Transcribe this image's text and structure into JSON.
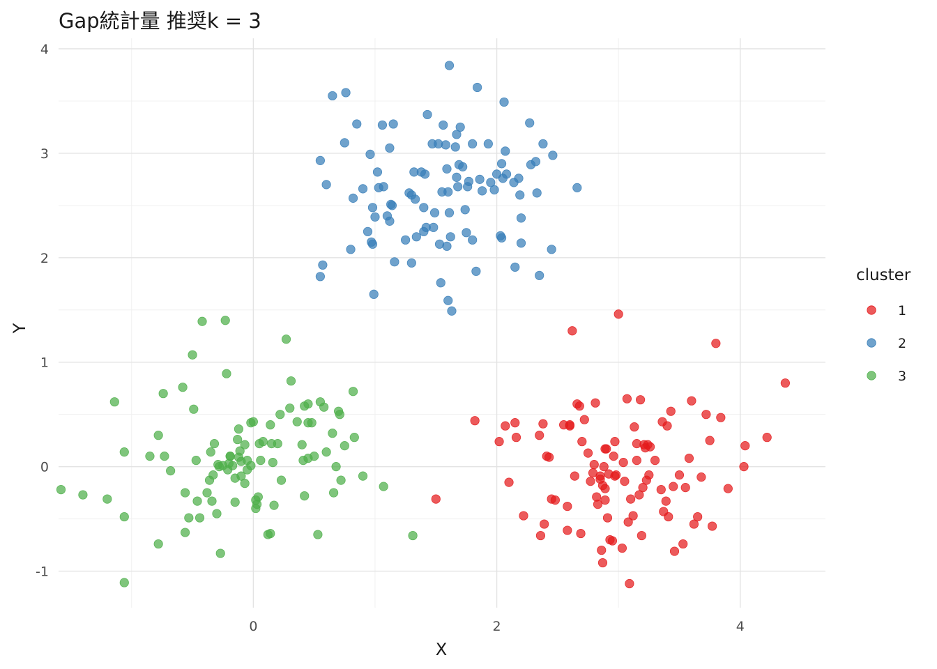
{
  "chart_data": {
    "type": "scatter",
    "title": "Gap統計量  推奨k = 3",
    "xlabel": "X",
    "ylabel": "Y",
    "xlim": [
      -1.6,
      4.7
    ],
    "ylim": [
      -1.35,
      4.1
    ],
    "x_ticks": [
      0,
      2,
      4
    ],
    "y_ticks": [
      -1,
      0,
      1,
      2,
      3,
      4
    ],
    "x_tick_labels": [
      "0",
      "2",
      "4"
    ],
    "y_tick_labels": [
      "-1",
      "0",
      "1",
      "2",
      "3",
      "4"
    ],
    "grid": true,
    "legend": {
      "title": "cluster",
      "position": "right"
    },
    "series": [
      {
        "name": "1",
        "color": "#E41A1C",
        "points": [
          [
            1.5,
            -0.31
          ],
          [
            1.82,
            0.44
          ],
          [
            2.02,
            0.24
          ],
          [
            2.07,
            0.39
          ],
          [
            2.1,
            -0.15
          ],
          [
            2.15,
            0.42
          ],
          [
            2.16,
            0.28
          ],
          [
            2.22,
            -0.47
          ],
          [
            2.35,
            0.3
          ],
          [
            2.36,
            -0.66
          ],
          [
            2.38,
            0.41
          ],
          [
            2.39,
            -0.55
          ],
          [
            2.41,
            0.1
          ],
          [
            2.43,
            0.09
          ],
          [
            2.45,
            -0.31
          ],
          [
            2.48,
            -0.32
          ],
          [
            2.55,
            0.4
          ],
          [
            2.58,
            -0.38
          ],
          [
            2.6,
            0.39
          ],
          [
            2.62,
            1.3
          ],
          [
            2.6,
            0.4
          ],
          [
            2.58,
            -0.61
          ],
          [
            2.64,
            -0.09
          ],
          [
            2.66,
            0.6
          ],
          [
            2.68,
            0.58
          ],
          [
            2.69,
            -0.64
          ],
          [
            2.7,
            0.24
          ],
          [
            2.72,
            0.45
          ],
          [
            2.75,
            0.13
          ],
          [
            2.77,
            -0.14
          ],
          [
            2.79,
            -0.06
          ],
          [
            2.8,
            0.02
          ],
          [
            2.81,
            0.61
          ],
          [
            2.82,
            -0.29
          ],
          [
            2.83,
            -0.36
          ],
          [
            2.85,
            -0.09
          ],
          [
            2.85,
            -0.12
          ],
          [
            2.86,
            -0.8
          ],
          [
            2.87,
            -0.92
          ],
          [
            2.87,
            -0.18
          ],
          [
            2.88,
            0.0
          ],
          [
            2.89,
            -0.21
          ],
          [
            2.89,
            -0.32
          ],
          [
            2.89,
            0.17
          ],
          [
            2.9,
            0.17
          ],
          [
            2.91,
            -0.49
          ],
          [
            2.92,
            -0.07
          ],
          [
            2.93,
            -0.7
          ],
          [
            2.95,
            -0.71
          ],
          [
            2.96,
            0.1
          ],
          [
            2.97,
            0.24
          ],
          [
            2.97,
            -0.09
          ],
          [
            2.98,
            -0.08
          ],
          [
            3.0,
            1.46
          ],
          [
            3.03,
            -0.78
          ],
          [
            3.04,
            0.04
          ],
          [
            3.05,
            -0.14
          ],
          [
            3.07,
            0.65
          ],
          [
            3.08,
            -0.53
          ],
          [
            3.09,
            -1.12
          ],
          [
            3.1,
            -0.31
          ],
          [
            3.12,
            -0.47
          ],
          [
            3.13,
            0.38
          ],
          [
            3.15,
            0.22
          ],
          [
            3.15,
            0.06
          ],
          [
            3.17,
            -0.27
          ],
          [
            3.18,
            0.64
          ],
          [
            3.19,
            -0.66
          ],
          [
            3.2,
            -0.2
          ],
          [
            3.21,
            0.21
          ],
          [
            3.22,
            0.18
          ],
          [
            3.23,
            -0.13
          ],
          [
            3.24,
            0.21
          ],
          [
            3.25,
            -0.08
          ],
          [
            3.26,
            0.19
          ],
          [
            3.3,
            0.06
          ],
          [
            3.35,
            -0.22
          ],
          [
            3.36,
            0.43
          ],
          [
            3.37,
            -0.43
          ],
          [
            3.39,
            -0.33
          ],
          [
            3.4,
            0.39
          ],
          [
            3.41,
            -0.48
          ],
          [
            3.43,
            0.53
          ],
          [
            3.45,
            -0.19
          ],
          [
            3.46,
            -0.81
          ],
          [
            3.5,
            -0.08
          ],
          [
            3.53,
            -0.74
          ],
          [
            3.55,
            -0.2
          ],
          [
            3.58,
            0.08
          ],
          [
            3.6,
            0.63
          ],
          [
            3.62,
            -0.55
          ],
          [
            3.65,
            -0.48
          ],
          [
            3.68,
            -0.1
          ],
          [
            3.72,
            0.5
          ],
          [
            3.75,
            0.25
          ],
          [
            3.77,
            -0.57
          ],
          [
            3.8,
            1.18
          ],
          [
            3.84,
            0.47
          ],
          [
            3.9,
            -0.21
          ],
          [
            4.03,
            0.0
          ],
          [
            4.04,
            0.2
          ],
          [
            4.22,
            0.28
          ],
          [
            4.37,
            0.8
          ]
        ]
      },
      {
        "name": "2",
        "color": "#377EB8",
        "points": [
          [
            0.55,
            2.93
          ],
          [
            0.55,
            1.82
          ],
          [
            0.57,
            1.93
          ],
          [
            0.6,
            2.7
          ],
          [
            0.65,
            3.55
          ],
          [
            0.75,
            3.1
          ],
          [
            0.76,
            3.58
          ],
          [
            0.8,
            2.08
          ],
          [
            0.82,
            2.57
          ],
          [
            0.85,
            3.28
          ],
          [
            0.9,
            2.66
          ],
          [
            0.94,
            2.25
          ],
          [
            0.96,
            2.99
          ],
          [
            0.97,
            2.15
          ],
          [
            0.98,
            2.13
          ],
          [
            0.98,
            2.48
          ],
          [
            0.99,
            1.65
          ],
          [
            1.0,
            2.39
          ],
          [
            1.02,
            2.82
          ],
          [
            1.03,
            2.67
          ],
          [
            1.06,
            3.27
          ],
          [
            1.07,
            2.68
          ],
          [
            1.1,
            2.4
          ],
          [
            1.12,
            2.35
          ],
          [
            1.12,
            3.05
          ],
          [
            1.13,
            2.51
          ],
          [
            1.14,
            2.5
          ],
          [
            1.15,
            3.28
          ],
          [
            1.16,
            1.96
          ],
          [
            1.25,
            2.17
          ],
          [
            1.28,
            2.62
          ],
          [
            1.3,
            2.6
          ],
          [
            1.3,
            1.95
          ],
          [
            1.32,
            2.82
          ],
          [
            1.33,
            2.56
          ],
          [
            1.34,
            2.2
          ],
          [
            1.38,
            2.82
          ],
          [
            1.4,
            2.48
          ],
          [
            1.4,
            2.25
          ],
          [
            1.41,
            2.8
          ],
          [
            1.42,
            2.29
          ],
          [
            1.43,
            3.37
          ],
          [
            1.47,
            3.09
          ],
          [
            1.48,
            2.29
          ],
          [
            1.49,
            2.43
          ],
          [
            1.52,
            3.09
          ],
          [
            1.53,
            2.13
          ],
          [
            1.54,
            1.76
          ],
          [
            1.55,
            2.63
          ],
          [
            1.56,
            3.27
          ],
          [
            1.58,
            3.08
          ],
          [
            1.59,
            2.11
          ],
          [
            1.59,
            2.85
          ],
          [
            1.6,
            2.63
          ],
          [
            1.6,
            1.59
          ],
          [
            1.61,
            3.84
          ],
          [
            1.61,
            2.43
          ],
          [
            1.62,
            2.2
          ],
          [
            1.63,
            1.49
          ],
          [
            1.66,
            3.06
          ],
          [
            1.67,
            2.77
          ],
          [
            1.67,
            3.18
          ],
          [
            1.68,
            2.68
          ],
          [
            1.69,
            2.89
          ],
          [
            1.7,
            3.25
          ],
          [
            1.72,
            2.87
          ],
          [
            1.74,
            2.46
          ],
          [
            1.75,
            2.24
          ],
          [
            1.76,
            2.68
          ],
          [
            1.77,
            2.73
          ],
          [
            1.8,
            2.17
          ],
          [
            1.8,
            3.09
          ],
          [
            1.83,
            1.87
          ],
          [
            1.84,
            3.63
          ],
          [
            1.86,
            2.75
          ],
          [
            1.88,
            2.64
          ],
          [
            1.93,
            3.09
          ],
          [
            1.95,
            2.72
          ],
          [
            1.98,
            2.65
          ],
          [
            2.0,
            2.8
          ],
          [
            2.03,
            2.21
          ],
          [
            2.04,
            2.19
          ],
          [
            2.04,
            2.9
          ],
          [
            2.05,
            2.76
          ],
          [
            2.06,
            3.49
          ],
          [
            2.07,
            3.02
          ],
          [
            2.08,
            2.8
          ],
          [
            2.14,
            2.72
          ],
          [
            2.15,
            1.91
          ],
          [
            2.18,
            2.76
          ],
          [
            2.19,
            2.6
          ],
          [
            2.2,
            2.14
          ],
          [
            2.2,
            2.38
          ],
          [
            2.27,
            3.29
          ],
          [
            2.28,
            2.89
          ],
          [
            2.32,
            2.92
          ],
          [
            2.33,
            2.62
          ],
          [
            2.35,
            1.83
          ],
          [
            2.38,
            3.09
          ],
          [
            2.45,
            2.08
          ],
          [
            2.46,
            2.98
          ],
          [
            2.66,
            2.67
          ]
        ]
      },
      {
        "name": "3",
        "color": "#4DAF4A",
        "points": [
          [
            -1.58,
            -0.22
          ],
          [
            -1.4,
            -0.27
          ],
          [
            -1.2,
            -0.31
          ],
          [
            -1.14,
            0.62
          ],
          [
            -1.06,
            0.14
          ],
          [
            -1.06,
            -0.48
          ],
          [
            -1.06,
            -1.11
          ],
          [
            -0.85,
            0.1
          ],
          [
            -0.78,
            0.3
          ],
          [
            -0.78,
            -0.74
          ],
          [
            -0.74,
            0.7
          ],
          [
            -0.73,
            0.1
          ],
          [
            -0.68,
            -0.04
          ],
          [
            -0.58,
            0.76
          ],
          [
            -0.56,
            -0.25
          ],
          [
            -0.56,
            -0.63
          ],
          [
            -0.53,
            -0.49
          ],
          [
            -0.5,
            1.07
          ],
          [
            -0.49,
            0.55
          ],
          [
            -0.47,
            0.06
          ],
          [
            -0.46,
            -0.33
          ],
          [
            -0.44,
            -0.49
          ],
          [
            -0.42,
            1.39
          ],
          [
            -0.38,
            -0.25
          ],
          [
            -0.36,
            -0.13
          ],
          [
            -0.35,
            0.14
          ],
          [
            -0.34,
            -0.33
          ],
          [
            -0.33,
            -0.08
          ],
          [
            -0.32,
            0.22
          ],
          [
            -0.3,
            -0.45
          ],
          [
            -0.29,
            0.02
          ],
          [
            -0.28,
            0.0
          ],
          [
            -0.27,
            -0.83
          ],
          [
            -0.25,
            0.01
          ],
          [
            -0.23,
            1.4
          ],
          [
            -0.22,
            0.89
          ],
          [
            -0.21,
            -0.03
          ],
          [
            -0.2,
            0.03
          ],
          [
            -0.19,
            0.1
          ],
          [
            -0.19,
            0.1
          ],
          [
            -0.17,
            0.01
          ],
          [
            -0.15,
            -0.34
          ],
          [
            -0.15,
            -0.11
          ],
          [
            -0.13,
            0.26
          ],
          [
            -0.12,
            0.09
          ],
          [
            -0.12,
            0.36
          ],
          [
            -0.11,
            0.15
          ],
          [
            -0.1,
            0.05
          ],
          [
            -0.1,
            -0.09
          ],
          [
            -0.07,
            -0.16
          ],
          [
            -0.07,
            0.21
          ],
          [
            -0.05,
            0.06
          ],
          [
            -0.05,
            -0.03
          ],
          [
            -0.02,
            0.01
          ],
          [
            -0.02,
            0.42
          ],
          [
            0.0,
            0.43
          ],
          [
            0.02,
            -0.32
          ],
          [
            0.02,
            -0.4
          ],
          [
            0.03,
            -0.36
          ],
          [
            0.04,
            -0.29
          ],
          [
            0.05,
            0.22
          ],
          [
            0.06,
            0.06
          ],
          [
            0.08,
            0.24
          ],
          [
            0.12,
            -0.65
          ],
          [
            0.14,
            -0.64
          ],
          [
            0.14,
            0.4
          ],
          [
            0.15,
            0.22
          ],
          [
            0.16,
            0.04
          ],
          [
            0.17,
            -0.37
          ],
          [
            0.2,
            0.22
          ],
          [
            0.22,
            0.5
          ],
          [
            0.23,
            -0.13
          ],
          [
            0.27,
            1.22
          ],
          [
            0.3,
            0.56
          ],
          [
            0.31,
            0.82
          ],
          [
            0.36,
            0.43
          ],
          [
            0.4,
            0.21
          ],
          [
            0.41,
            0.06
          ],
          [
            0.42,
            -0.28
          ],
          [
            0.42,
            0.58
          ],
          [
            0.45,
            0.42
          ],
          [
            0.45,
            0.6
          ],
          [
            0.45,
            0.08
          ],
          [
            0.48,
            0.42
          ],
          [
            0.5,
            0.1
          ],
          [
            0.53,
            -0.65
          ],
          [
            0.55,
            0.62
          ],
          [
            0.58,
            0.57
          ],
          [
            0.6,
            0.14
          ],
          [
            0.65,
            0.32
          ],
          [
            0.66,
            -0.25
          ],
          [
            0.68,
            0.0
          ],
          [
            0.7,
            0.53
          ],
          [
            0.71,
            0.5
          ],
          [
            0.72,
            -0.13
          ],
          [
            0.75,
            0.2
          ],
          [
            0.82,
            0.72
          ],
          [
            0.83,
            0.28
          ],
          [
            0.9,
            -0.09
          ],
          [
            1.07,
            -0.19
          ],
          [
            1.31,
            -0.66
          ]
        ]
      }
    ]
  }
}
